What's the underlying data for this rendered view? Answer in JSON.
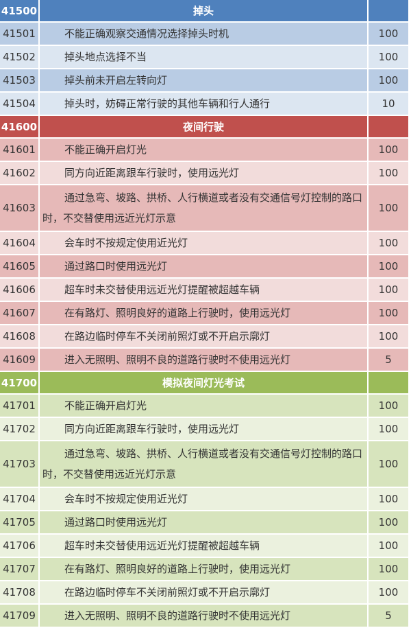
{
  "sections": [
    {
      "code": "41500",
      "title": "掉头",
      "colors": {
        "header": "#4f81bd",
        "dark": "#b9cce4",
        "light": "#dce6f1"
      },
      "items": [
        {
          "code": "41501",
          "desc": "不能正确观察交通情况选择掉头时机",
          "points": "100"
        },
        {
          "code": "41502",
          "desc": "掉头地点选择不当",
          "points": "100"
        },
        {
          "code": "41503",
          "desc": "掉头前未开启左转向灯",
          "points": "100"
        },
        {
          "code": "41504",
          "desc": "掉头时，妨碍正常行驶的其他车辆和行人通行",
          "points": "10"
        }
      ]
    },
    {
      "code": "41600",
      "title": "夜间行驶",
      "colors": {
        "header": "#c0504d",
        "dark": "#e6b9b8",
        "light": "#f2dcdb"
      },
      "items": [
        {
          "code": "41601",
          "desc": "不能正确开启灯光",
          "points": "100"
        },
        {
          "code": "41602",
          "desc": "同方向近距离跟车行驶时，使用远光灯",
          "points": "100"
        },
        {
          "code": "41603",
          "desc": "通过急弯、坡路、拱桥、人行横道或者没有交通信号灯控制的路口时，不交替使用远近光灯示意",
          "points": "100"
        },
        {
          "code": "41604",
          "desc": "会车时不按规定使用近光灯",
          "points": "100"
        },
        {
          "code": "41605",
          "desc": "通过路口时使用远光灯",
          "points": "100"
        },
        {
          "code": "41606",
          "desc": "超车时未交替使用远近光灯提醒被超越车辆",
          "points": "100"
        },
        {
          "code": "41607",
          "desc": "在有路灯、照明良好的道路上行驶时，使用远光灯",
          "points": "100"
        },
        {
          "code": "41608",
          "desc": "在路边临时停车不关闭前照灯或不开启示廓灯",
          "points": "100"
        },
        {
          "code": "41609",
          "desc": "进入无照明、照明不良的道路行驶时不使用远光灯",
          "points": "5"
        }
      ]
    },
    {
      "code": "41700",
      "title": "模拟夜间灯光考试",
      "colors": {
        "header": "#9bbb59",
        "dark": "#d7e4bd",
        "light": "#ebf1de"
      },
      "items": [
        {
          "code": "41701",
          "desc": "不能正确开启灯光",
          "points": "100"
        },
        {
          "code": "41702",
          "desc": "同方向近距离跟车行驶时，使用远光灯",
          "points": "100"
        },
        {
          "code": "41703",
          "desc": "通过急弯、坡路、拱桥、人行横道或者没有交通信号灯控制的路口时，不交替使用远近光灯示意",
          "points": "100"
        },
        {
          "code": "41704",
          "desc": "会车时不按规定使用近光灯",
          "points": "100"
        },
        {
          "code": "41705",
          "desc": "通过路口时使用远光灯",
          "points": "100"
        },
        {
          "code": "41706",
          "desc": "超车时未交替使用远近光灯提醒被超越车辆",
          "points": "100"
        },
        {
          "code": "41707",
          "desc": "在有路灯、照明良好的道路上行驶时，使用远光灯",
          "points": "100"
        },
        {
          "code": "41708",
          "desc": "在路边临时停车不关闭前照灯或不开启示廓灯",
          "points": "100"
        },
        {
          "code": "41709",
          "desc": "进入无照明、照明不良的道路行驶时不使用远光灯",
          "points": "5"
        }
      ]
    }
  ]
}
